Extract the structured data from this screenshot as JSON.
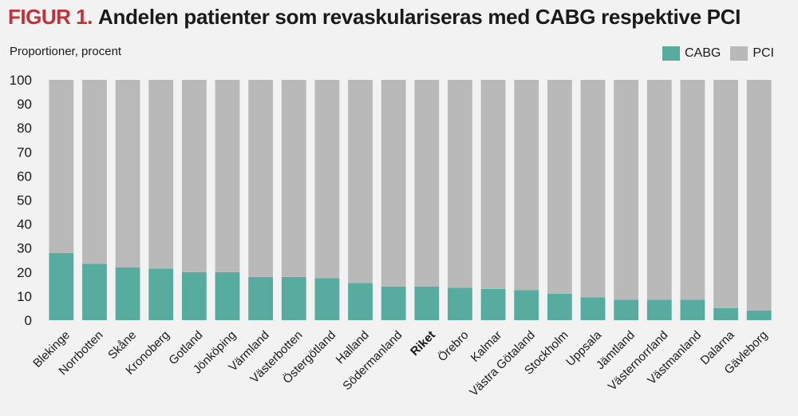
{
  "figure": {
    "prefix": "FIGUR 1.",
    "title": "Andelen patienter som revaskulariseras med CABG respektive PCI"
  },
  "colors": {
    "cabg": "#58ab9f",
    "pci": "#b9b9b9",
    "accent": "#c0323a"
  },
  "chart_data": {
    "type": "bar",
    "stacked": true,
    "title": "Andelen patienter som revaskulariseras med CABG respektive PCI",
    "ylabel": "Proportioner, procent",
    "xlabel": "",
    "ylim": [
      0,
      100
    ],
    "yticks": [
      0,
      10,
      20,
      30,
      40,
      50,
      60,
      70,
      80,
      90,
      100
    ],
    "legend_position": "top-right",
    "grid": false,
    "highlighted_category": "Riket",
    "categories": [
      "Blekinge",
      "Norrbotten",
      "Skåne",
      "Kronoberg",
      "Gotland",
      "Jönköping",
      "Värmland",
      "Västerbotten",
      "Östergötland",
      "Halland",
      "Södermanland",
      "Riket",
      "Örebro",
      "Kalmar",
      "Västra Götaland",
      "Stockholm",
      "Uppsala",
      "Jämtland",
      "Västernorrland",
      "Västmanland",
      "Dalarna",
      "Gävleborg"
    ],
    "series": [
      {
        "name": "CABG",
        "values": [
          28,
          23.5,
          22,
          21.5,
          20,
          20,
          18,
          18,
          17.5,
          15.5,
          14,
          14,
          13.5,
          13,
          12.5,
          11,
          9.5,
          8.5,
          8.5,
          8.5,
          5,
          4
        ]
      },
      {
        "name": "PCI",
        "values": [
          72,
          76.5,
          78,
          78.5,
          80,
          80,
          82,
          82,
          82.5,
          84.5,
          86,
          86,
          86.5,
          87,
          87.5,
          89,
          90.5,
          91.5,
          91.5,
          91.5,
          95,
          96
        ]
      }
    ]
  }
}
